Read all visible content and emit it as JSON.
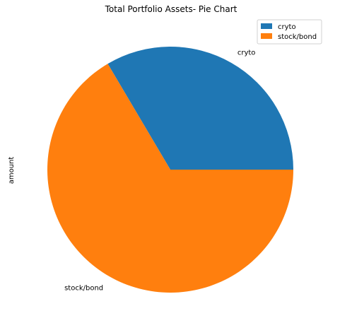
{
  "chart_data": {
    "type": "pie",
    "title": "Total Portfolio Assets- Pie Chart",
    "ylabel": "amount",
    "categories": [
      "cryto",
      "stock/bond"
    ],
    "values": [
      33.5,
      66.5
    ],
    "colors": [
      "#1f77b4",
      "#ff7f0e"
    ],
    "start_angle": 0,
    "legend": {
      "placement": "top-right",
      "entries": [
        "cryto",
        "stock/bond"
      ]
    }
  }
}
